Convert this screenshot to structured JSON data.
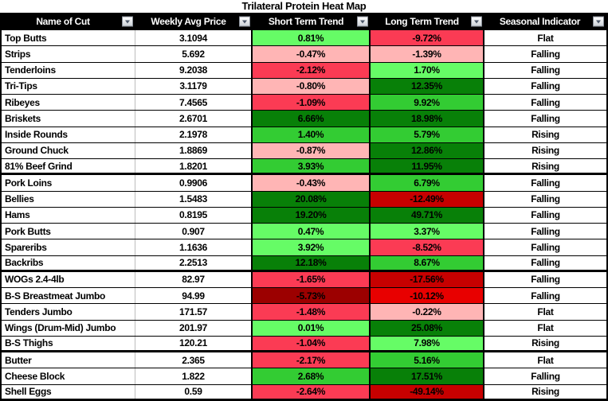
{
  "title": "Trilateral Protein Heat Map",
  "columns": [
    {
      "label": "Name of Cut"
    },
    {
      "label": "Weekly Avg Price"
    },
    {
      "label": "Short Term Trend"
    },
    {
      "label": "Long Term Trend"
    },
    {
      "label": "Seasonal Indicator"
    }
  ],
  "colors": {
    "header_bg": "#000000",
    "header_text": "#FFFFFF",
    "gridline_gray": "#BDBDBD",
    "light_green": "#66FC66",
    "medium_green": "#33CC33",
    "dark_green": "#088008",
    "light_pink": "#FFB5B5",
    "crimson": "#FB3B54",
    "strong_red": "#C70000",
    "bright_red": "#E80000",
    "maroon": "#9C0000"
  },
  "rows": [
    {
      "name": "Top Butts",
      "price": "3.1094",
      "short_term": "0.81%",
      "short_term_bg": "#66FC66",
      "long_term": "-9.72%",
      "long_term_bg": "#FB3B54",
      "seasonal": "Flat",
      "section_end": false
    },
    {
      "name": "Strips",
      "price": "5.692",
      "short_term": "-0.47%",
      "short_term_bg": "#FFB5B5",
      "long_term": "-1.39%",
      "long_term_bg": "#FFB5B5",
      "seasonal": "Falling",
      "section_end": false
    },
    {
      "name": "Tenderloins",
      "price": "9.2038",
      "short_term": "-2.12%",
      "short_term_bg": "#FB3B54",
      "long_term": "1.70%",
      "long_term_bg": "#66FC66",
      "seasonal": "Falling",
      "section_end": false
    },
    {
      "name": "Tri-Tips",
      "price": "3.1179",
      "short_term": "-0.80%",
      "short_term_bg": "#FFB5B5",
      "long_term": "12.35%",
      "long_term_bg": "#088008",
      "seasonal": "Falling",
      "section_end": false
    },
    {
      "name": "Ribeyes",
      "price": "7.4565",
      "short_term": "-1.09%",
      "short_term_bg": "#FB3B54",
      "long_term": "9.92%",
      "long_term_bg": "#33CC33",
      "seasonal": "Falling",
      "section_end": false
    },
    {
      "name": "Briskets",
      "price": "2.6701",
      "short_term": "6.66%",
      "short_term_bg": "#088008",
      "long_term": "18.98%",
      "long_term_bg": "#088008",
      "seasonal": "Falling",
      "section_end": false
    },
    {
      "name": "Inside Rounds",
      "price": "2.1978",
      "short_term": "1.40%",
      "short_term_bg": "#33CC33",
      "long_term": "5.79%",
      "long_term_bg": "#33CC33",
      "seasonal": "Rising",
      "section_end": false
    },
    {
      "name": "Ground Chuck",
      "price": "1.8869",
      "short_term": "-0.87%",
      "short_term_bg": "#FFB5B5",
      "long_term": "12.86%",
      "long_term_bg": "#088008",
      "seasonal": "Rising",
      "section_end": false
    },
    {
      "name": "81% Beef Grind",
      "price": "1.8201",
      "short_term": "3.93%",
      "short_term_bg": "#33CC33",
      "long_term": "11.95%",
      "long_term_bg": "#088008",
      "seasonal": "Rising",
      "section_end": true
    },
    {
      "name": "Pork Loins",
      "price": "0.9906",
      "short_term": "-0.43%",
      "short_term_bg": "#FFB5B5",
      "long_term": "6.79%",
      "long_term_bg": "#33CC33",
      "seasonal": "Falling",
      "section_end": false
    },
    {
      "name": "Bellies",
      "price": "1.5483",
      "short_term": "20.08%",
      "short_term_bg": "#088008",
      "long_term": "-12.49%",
      "long_term_bg": "#C70000",
      "seasonal": "Falling",
      "section_end": false
    },
    {
      "name": "Hams",
      "price": "0.8195",
      "short_term": "19.20%",
      "short_term_bg": "#088008",
      "long_term": "49.71%",
      "long_term_bg": "#088008",
      "seasonal": "Falling",
      "section_end": false
    },
    {
      "name": "Pork Butts",
      "price": "0.907",
      "short_term": "0.47%",
      "short_term_bg": "#66FC66",
      "long_term": "3.37%",
      "long_term_bg": "#66FC66",
      "seasonal": "Falling",
      "section_end": false
    },
    {
      "name": "Spareribs",
      "price": "1.1636",
      "short_term": "3.92%",
      "short_term_bg": "#66FC66",
      "long_term": "-8.52%",
      "long_term_bg": "#FB3B54",
      "seasonal": "Falling",
      "section_end": false
    },
    {
      "name": "Backribs",
      "price": "2.2513",
      "short_term": "12.18%",
      "short_term_bg": "#088008",
      "long_term": "8.67%",
      "long_term_bg": "#33CC33",
      "seasonal": "Falling",
      "section_end": true
    },
    {
      "name": "WOGs 2.4-4lb",
      "price": "82.97",
      "short_term": "-1.65%",
      "short_term_bg": "#FB3B54",
      "long_term": "-17.56%",
      "long_term_bg": "#C70000",
      "seasonal": "Falling",
      "section_end": false
    },
    {
      "name": "B-S Breastmeat Jumbo",
      "price": "94.99",
      "short_term": "-5.73%",
      "short_term_bg": "#9C0000",
      "long_term": "-10.12%",
      "long_term_bg": "#E80000",
      "seasonal": "Falling",
      "section_end": false
    },
    {
      "name": "Tenders Jumbo",
      "price": "171.57",
      "short_term": "-1.48%",
      "short_term_bg": "#FB3B54",
      "long_term": "-0.22%",
      "long_term_bg": "#FFB5B5",
      "seasonal": "Flat",
      "section_end": false
    },
    {
      "name": "Wings (Drum-Mid) Jumbo",
      "price": "201.97",
      "short_term": "0.01%",
      "short_term_bg": "#66FC66",
      "long_term": "25.08%",
      "long_term_bg": "#088008",
      "seasonal": "Flat",
      "section_end": false
    },
    {
      "name": "B-S Thighs",
      "price": "120.21",
      "short_term": "-1.04%",
      "short_term_bg": "#FB3B54",
      "long_term": "7.98%",
      "long_term_bg": "#66FC66",
      "seasonal": "Rising",
      "section_end": true
    },
    {
      "name": "Butter",
      "price": "2.365",
      "short_term": "-2.17%",
      "short_term_bg": "#FB3B54",
      "long_term": "5.16%",
      "long_term_bg": "#33CC33",
      "seasonal": "Flat",
      "section_end": false
    },
    {
      "name": "Cheese Block",
      "price": "1.822",
      "short_term": "2.68%",
      "short_term_bg": "#33CC33",
      "long_term": "17.51%",
      "long_term_bg": "#088008",
      "seasonal": "Falling",
      "section_end": false
    },
    {
      "name": "Shell Eggs",
      "price": "0.59",
      "short_term": "-2.64%",
      "short_term_bg": "#FB3B54",
      "long_term": "-49.14%",
      "long_term_bg": "#C70000",
      "seasonal": "Rising",
      "section_end": true
    }
  ],
  "chart_data": {
    "type": "heatmap",
    "title": "Trilateral Protein Heat Map",
    "row_labels": [
      "Top Butts",
      "Strips",
      "Tenderloins",
      "Tri-Tips",
      "Ribeyes",
      "Briskets",
      "Inside Rounds",
      "Ground Chuck",
      "81% Beef Grind",
      "Pork Loins",
      "Bellies",
      "Hams",
      "Pork Butts",
      "Spareribs",
      "Backribs",
      "WOGs 2.4-4lb",
      "B-S Breastmeat Jumbo",
      "Tenders Jumbo",
      "Wings (Drum-Mid) Jumbo",
      "B-S Thighs",
      "Butter",
      "Cheese Block",
      "Shell Eggs"
    ],
    "columns": [
      "Weekly Avg Price",
      "Short Term Trend",
      "Long Term Trend",
      "Seasonal Indicator"
    ],
    "weekly_avg_price": [
      3.1094,
      5.692,
      9.2038,
      3.1179,
      7.4565,
      2.6701,
      2.1978,
      1.8869,
      1.8201,
      0.9906,
      1.5483,
      0.8195,
      0.907,
      1.1636,
      2.2513,
      82.97,
      94.99,
      171.57,
      201.97,
      120.21,
      2.365,
      1.822,
      0.59
    ],
    "short_term_trend_pct": [
      0.81,
      -0.47,
      -2.12,
      -0.8,
      -1.09,
      6.66,
      1.4,
      -0.87,
      3.93,
      -0.43,
      20.08,
      19.2,
      0.47,
      3.92,
      12.18,
      -1.65,
      -5.73,
      -1.48,
      0.01,
      -1.04,
      -2.17,
      2.68,
      -2.64
    ],
    "long_term_trend_pct": [
      -9.72,
      -1.39,
      1.7,
      12.35,
      9.92,
      18.98,
      5.79,
      12.86,
      11.95,
      6.79,
      -12.49,
      49.71,
      3.37,
      -8.52,
      8.67,
      -17.56,
      -10.12,
      -0.22,
      25.08,
      7.98,
      5.16,
      17.51,
      -49.14
    ],
    "seasonal_indicator": [
      "Flat",
      "Falling",
      "Falling",
      "Falling",
      "Falling",
      "Falling",
      "Rising",
      "Rising",
      "Rising",
      "Falling",
      "Falling",
      "Falling",
      "Falling",
      "Falling",
      "Falling",
      "Falling",
      "Falling",
      "Flat",
      "Flat",
      "Rising",
      "Flat",
      "Falling",
      "Rising"
    ],
    "color_scale": "red (negative) to green (positive), darker = larger magnitude"
  }
}
